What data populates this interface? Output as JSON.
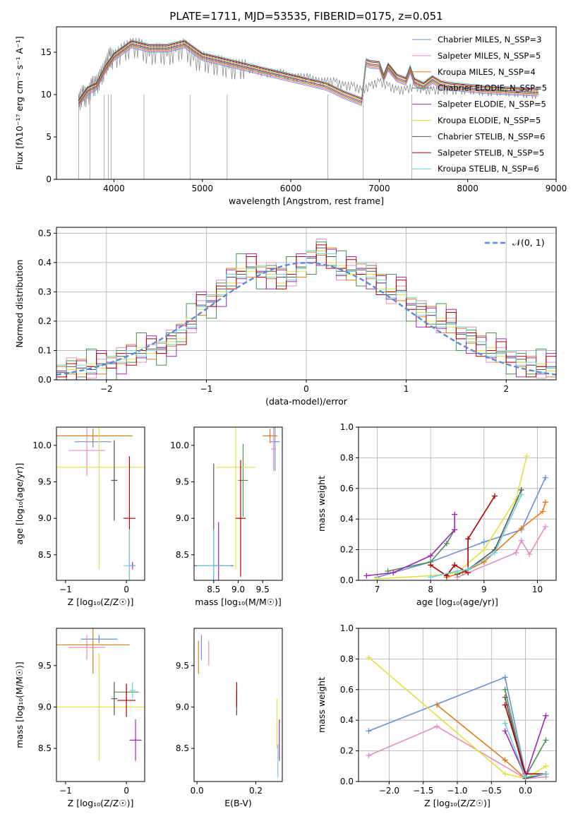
{
  "figure": {
    "title": "PLATE=1711, MJD=53535, FIBERID=0175, z=0.051",
    "model_colors": [
      "#6b8fd6",
      "#e48fc0",
      "#e07c20",
      "#4f8f56",
      "#9a2bb0",
      "#e0e040",
      "#555555",
      "#b00000",
      "#70d0d8"
    ]
  },
  "chart_data": [
    {
      "id": "spectrum",
      "type": "line",
      "xlabel": "wavelength [Angstrom, rest frame]",
      "ylabel": "Flux [fλ10⁻¹⁷ erg cm⁻² s⁻¹ A⁻¹]",
      "xlim": [
        3350,
        9000
      ],
      "ylim": [
        0,
        18
      ],
      "xticks": [
        4000,
        5000,
        6000,
        7000,
        8000,
        9000
      ],
      "yticks": [
        0,
        5,
        10,
        15
      ],
      "grid": false,
      "legend_position": "top-right",
      "legend": [
        "Chabrier MILES, N_SSP=3",
        "Salpeter MILES, N_SSP=5",
        "Kroupa MILES, N_SSP=4",
        "Chabrier ELODIE, N_SSP=5",
        "Salpeter ELODIE, N_SSP=5",
        "Kroupa ELODIE, N_SSP=5",
        "Chabrier STELIB, N_SSP=6",
        "Salpeter STELIB, N_SSP=5",
        "Kroupa STELIB, N_SSP=6"
      ],
      "data_color": "#808080",
      "data": {
        "x": [
          3600,
          3650,
          3700,
          3750,
          3800,
          3850,
          3900,
          3950,
          4000,
          4100,
          4200,
          4300,
          4400,
          4500,
          4600,
          4700,
          4800,
          4900,
          5000,
          5100,
          5200,
          5300,
          5400,
          5500,
          5600,
          5700,
          5800,
          5900,
          6000,
          6100,
          6200,
          6300,
          6400,
          6500,
          6600,
          6700,
          6800,
          6900,
          7000,
          7100,
          7200,
          7300,
          7400,
          7500,
          7600,
          7700,
          7800,
          7900,
          8000,
          8100,
          8200,
          8300,
          8400,
          8500,
          8600,
          8700,
          8800
        ],
        "y": [
          9,
          10,
          9.5,
          11,
          11,
          12,
          13,
          14.5,
          14,
          15,
          15.5,
          15.5,
          14.5,
          15,
          14.5,
          15,
          15.5,
          14,
          14,
          13.5,
          13.5,
          13,
          13,
          13,
          13,
          12.5,
          12.5,
          12.5,
          12,
          12,
          12,
          11.5,
          11.5,
          11.5,
          11,
          11,
          10.5,
          11,
          11.5,
          11,
          10.5,
          10.5,
          11,
          10.5,
          10.5,
          10.5,
          10.5,
          10.5,
          10.5,
          10.5,
          10.3,
          10.3,
          10.4,
          10.2,
          10.2,
          10.0,
          10.0
        ]
      },
      "model": {
        "x": [
          3600,
          3700,
          3800,
          3900,
          4000,
          4200,
          4400,
          4600,
          4800,
          5000,
          5200,
          5400,
          5600,
          5800,
          6000,
          6200,
          6400,
          6600,
          6800,
          6850,
          6900,
          7000,
          7050,
          7100,
          7200,
          7300,
          7350,
          7400,
          7500,
          7600,
          7700,
          7800,
          7900,
          8000,
          8200,
          8400,
          8600,
          8800
        ],
        "y": [
          9,
          10.5,
          11,
          13,
          14.5,
          16,
          15.5,
          15.5,
          16,
          14.5,
          14,
          13.5,
          13,
          12.5,
          12,
          11.5,
          11,
          10,
          9.2,
          13.8,
          13.6,
          13.5,
          12,
          13.3,
          12.0,
          11.6,
          13.0,
          11.5,
          11.0,
          11.8,
          11.2,
          11.0,
          10.9,
          10.8,
          10.6,
          10.5,
          10.4,
          10.3
        ]
      }
    },
    {
      "id": "residual_histogram",
      "type": "bar",
      "xlabel": "(data-model)/error",
      "ylabel": "Normed distribution",
      "xlim": [
        -2.5,
        2.5
      ],
      "ylim": [
        0,
        0.52
      ],
      "xticks": [
        -2,
        -1,
        0,
        1,
        2
      ],
      "yticks": [
        0.0,
        0.1,
        0.2,
        0.3,
        0.4,
        0.5
      ],
      "grid": true,
      "legend_position": "top-right",
      "legend": [
        "𝒩(0, 1)"
      ],
      "normal_color": "#5b8ad8",
      "bin_edges": [
        -2.5,
        -2.4,
        -2.3,
        -2.2,
        -2.1,
        -2.0,
        -1.9,
        -1.8,
        -1.7,
        -1.6,
        -1.5,
        -1.4,
        -1.3,
        -1.2,
        -1.1,
        -1.0,
        -0.9,
        -0.8,
        -0.7,
        -0.6,
        -0.5,
        -0.4,
        -0.3,
        -0.2,
        -0.1,
        0.0,
        0.1,
        0.2,
        0.3,
        0.4,
        0.5,
        0.6,
        0.7,
        0.8,
        0.9,
        1.0,
        1.1,
        1.2,
        1.3,
        1.4,
        1.5,
        1.6,
        1.7,
        1.8,
        1.9,
        2.0,
        2.1,
        2.2,
        2.3,
        2.4,
        2.5
      ],
      "counts": [
        0.03,
        0.035,
        0.04,
        0.045,
        0.05,
        0.06,
        0.07,
        0.09,
        0.1,
        0.1,
        0.11,
        0.13,
        0.16,
        0.2,
        0.25,
        0.27,
        0.3,
        0.35,
        0.37,
        0.38,
        0.37,
        0.36,
        0.35,
        0.36,
        0.38,
        0.42,
        0.44,
        0.42,
        0.38,
        0.37,
        0.38,
        0.36,
        0.33,
        0.3,
        0.3,
        0.26,
        0.23,
        0.22,
        0.2,
        0.19,
        0.16,
        0.14,
        0.12,
        0.1,
        0.09,
        0.08,
        0.06,
        0.05,
        0.045,
        0.04
      ]
    },
    {
      "id": "age_vs_Z",
      "type": "scatter",
      "xlabel": "Z [log₁₀(Z/Z☉)]",
      "ylabel": "age  [log₁₀(age/yr)]",
      "xlim": [
        -1.15,
        0.3
      ],
      "ylim": [
        8.15,
        10.25
      ],
      "xticks": [
        -1,
        0
      ],
      "yticks": [
        8.5,
        9.0,
        9.5,
        10.0
      ],
      "grid": false,
      "points": [
        {
          "model": 0,
          "x": -0.55,
          "y": 10.05,
          "xerr": 0.3,
          "yerr": 0.08
        },
        {
          "model": 1,
          "x": -0.65,
          "y": 9.93,
          "xerr": 0.3,
          "yerr": 0.35
        },
        {
          "model": 2,
          "x": -0.55,
          "y": 10.13,
          "xerr": 0.65,
          "yerr": 0.1
        },
        {
          "model": 3,
          "x": -0.2,
          "y": 9.52,
          "xerr": 0.05,
          "yerr": 0.55
        },
        {
          "model": 4,
          "x": 0.1,
          "y": 8.35,
          "xerr": 0.05,
          "yerr": 0.05
        },
        {
          "model": 5,
          "x": -0.45,
          "y": 9.7,
          "xerr": 0.8,
          "yerr": 1.4
        },
        {
          "model": 6,
          "x": -0.2,
          "y": 9.52,
          "xerr": 0.05,
          "yerr": 0.55
        },
        {
          "model": 7,
          "x": 0.05,
          "y": 9.0,
          "xerr": 0.1,
          "yerr": 0.85
        },
        {
          "model": 8,
          "x": 0.05,
          "y": 8.35,
          "xerr": 0.1,
          "yerr": 0.5
        }
      ]
    },
    {
      "id": "age_vs_mass",
      "type": "scatter",
      "xlabel": "mass [log₁₀(M/M☉)]",
      "ylabel": "",
      "xlim": [
        8.1,
        9.9
      ],
      "ylim": [
        8.15,
        10.25
      ],
      "xticks": [
        8.5,
        9.0,
        9.5
      ],
      "yticks": [
        8.5,
        9.0,
        9.5,
        10.0
      ],
      "grid": false,
      "points": [
        {
          "model": 0,
          "x": 9.75,
          "y": 10.05,
          "xerr": 0.1,
          "yerr": 0.4
        },
        {
          "model": 1,
          "x": 9.72,
          "y": 9.95,
          "xerr": 0.05,
          "yerr": 0.3
        },
        {
          "model": 2,
          "x": 9.65,
          "y": 10.13,
          "xerr": 0.15,
          "yerr": 0.1
        },
        {
          "model": 3,
          "x": 9.1,
          "y": 9.52,
          "xerr": 0.1,
          "yerr": 0.5
        },
        {
          "model": 4,
          "x": 8.6,
          "y": 8.35,
          "xerr": 0.1,
          "yerr": 0.6
        },
        {
          "model": 5,
          "x": 8.95,
          "y": 9.7,
          "xerr": 0.4,
          "yerr": 1.4
        },
        {
          "model": 6,
          "x": 8.5,
          "y": 8.35,
          "xerr": 0.4,
          "yerr": 1.4
        },
        {
          "model": 7,
          "x": 9.05,
          "y": 9.0,
          "xerr": 0.1,
          "yerr": 0.8
        },
        {
          "model": 8,
          "x": 8.5,
          "y": 8.35,
          "xerr": 0.35,
          "yerr": 0.5
        }
      ]
    },
    {
      "id": "weight_vs_age",
      "type": "line",
      "xlabel": "age  [log₁₀(age/yr)]",
      "ylabel": "mass weight",
      "xlim": [
        6.65,
        10.35
      ],
      "ylim": [
        0,
        1.0
      ],
      "xticks": [
        7,
        8,
        9,
        10
      ],
      "yticks": [
        0.0,
        0.2,
        0.4,
        0.6,
        0.8,
        1.0
      ],
      "grid": true,
      "series": [
        {
          "model": 0,
          "x": [
            7.0,
            8.0,
            9.0,
            9.7,
            10.15
          ],
          "y": [
            0.02,
            0.12,
            0.25,
            0.33,
            0.67
          ]
        },
        {
          "model": 1,
          "x": [
            8.5,
            9.6,
            9.7,
            9.85,
            10.15
          ],
          "y": [
            0.02,
            0.18,
            0.26,
            0.17,
            0.35
          ]
        },
        {
          "model": 2,
          "x": [
            8.3,
            8.6,
            9.0,
            9.7,
            10.1,
            10.15
          ],
          "y": [
            0.02,
            0.05,
            0.12,
            0.34,
            0.45,
            0.51
          ]
        },
        {
          "model": 3,
          "x": [
            7.2,
            8.0,
            8.3,
            8.45
          ],
          "y": [
            0.06,
            0.12,
            0.24,
            0.33
          ]
        },
        {
          "model": 4,
          "x": [
            6.8,
            7.3,
            8.0,
            8.45,
            8.45
          ],
          "y": [
            0.03,
            0.05,
            0.16,
            0.33,
            0.43
          ]
        },
        {
          "model": 5,
          "x": [
            7.0,
            8.0,
            8.5,
            9.0,
            9.6,
            9.8
          ],
          "y": [
            0.01,
            0.03,
            0.05,
            0.2,
            0.53,
            0.81
          ]
        },
        {
          "model": 6,
          "x": [
            8.5,
            8.7,
            9.2,
            9.7
          ],
          "y": [
            0.04,
            0.07,
            0.2,
            0.59
          ]
        },
        {
          "model": 7,
          "x": [
            8.0,
            8.3,
            8.45,
            8.7,
            8.7,
            9.2
          ],
          "y": [
            0.1,
            0.03,
            0.1,
            0.05,
            0.27,
            0.55
          ]
        },
        {
          "model": 8,
          "x": [
            8.0,
            8.5,
            8.7,
            9.2,
            9.7
          ],
          "y": [
            0.02,
            0.06,
            0.07,
            0.18,
            0.56
          ]
        }
      ]
    },
    {
      "id": "mass_vs_Z",
      "type": "scatter",
      "xlabel": "Z [log₁₀(Z/Z☉)]",
      "ylabel": "mass [log₁₀(M/M☉)]",
      "xlim": [
        -1.15,
        0.3
      ],
      "ylim": [
        8.1,
        9.95
      ],
      "xticks": [
        -1,
        0
      ],
      "yticks": [
        8.5,
        9.0,
        9.5
      ],
      "grid": false,
      "points": [
        {
          "model": 0,
          "x": -0.45,
          "y": 9.82,
          "xerr": 0.3,
          "yerr": 0.05
        },
        {
          "model": 1,
          "x": -0.65,
          "y": 9.72,
          "xerr": 0.3,
          "yerr": 0.15
        },
        {
          "model": 2,
          "x": -0.55,
          "y": 9.75,
          "xerr": 0.6,
          "yerr": 0.35
        },
        {
          "model": 3,
          "x": 0.0,
          "y": 9.18,
          "xerr": 0.2,
          "yerr": 0.1
        },
        {
          "model": 4,
          "x": 0.15,
          "y": 8.6,
          "xerr": 0.1,
          "yerr": 0.25
        },
        {
          "model": 5,
          "x": -0.45,
          "y": 9.0,
          "xerr": 0.8,
          "yerr": 0.65
        },
        {
          "model": 6,
          "x": -0.2,
          "y": 9.1,
          "xerr": 0.05,
          "yerr": 0.2
        },
        {
          "model": 7,
          "x": 0.0,
          "y": 9.08,
          "xerr": 0.15,
          "yerr": 0.2
        },
        {
          "model": 8,
          "x": 0.1,
          "y": 9.2,
          "xerr": 0.05,
          "yerr": 0.1
        }
      ]
    },
    {
      "id": "mass_vs_ebv",
      "type": "scatter",
      "xlabel": "E(B-V)",
      "ylabel": "",
      "xlim": [
        -0.01,
        0.29
      ],
      "ylim": [
        8.1,
        9.95
      ],
      "xticks": [
        0.0,
        0.2
      ],
      "yticks": [
        8.5,
        9.0,
        9.5
      ],
      "grid": false,
      "points": [
        {
          "model": 0,
          "x": 0.015,
          "y": 9.72,
          "xerr": 0.0,
          "yerr": 0.15
        },
        {
          "model": 1,
          "x": 0.04,
          "y": 9.65,
          "xerr": 0.0,
          "yerr": 0.15
        },
        {
          "model": 2,
          "x": 0.005,
          "y": 9.6,
          "xerr": 0.0,
          "yerr": 0.2
        },
        {
          "model": 3,
          "x": 0.135,
          "y": 9.05,
          "xerr": 0.0,
          "yerr": 0.15
        },
        {
          "model": 4,
          "x": 0.28,
          "y": 8.6,
          "xerr": 0.0,
          "yerr": 0.25
        },
        {
          "model": 5,
          "x": 0.272,
          "y": 8.8,
          "xerr": 0.0,
          "yerr": 0.3
        },
        {
          "model": 6,
          "x": 0.135,
          "y": 9.05,
          "xerr": 0.0,
          "yerr": 0.15
        },
        {
          "model": 7,
          "x": 0.135,
          "y": 9.15,
          "xerr": 0.0,
          "yerr": 0.15
        },
        {
          "model": 8,
          "x": 0.275,
          "y": 8.35,
          "xerr": 0.0,
          "yerr": 0.2
        }
      ]
    },
    {
      "id": "weight_vs_Z",
      "type": "line",
      "xlabel": "Z [log₁₀(Z/Z☉)]",
      "ylabel": "mass weight",
      "xlim": [
        -2.45,
        0.45
      ],
      "ylim": [
        0,
        1.0
      ],
      "xticks": [
        -2.0,
        -1.5,
        -1.0,
        -0.5,
        0.0
      ],
      "yticks": [
        0.0,
        0.2,
        0.4,
        0.6,
        0.8,
        1.0
      ],
      "grid": true,
      "series": [
        {
          "model": 0,
          "x": [
            -2.3,
            -0.3,
            0.0
          ],
          "y": [
            0.33,
            0.68,
            0.05
          ]
        },
        {
          "model": 1,
          "x": [
            -2.3,
            -1.3,
            0.0,
            0.3
          ],
          "y": [
            0.17,
            0.36,
            0.02,
            0.03
          ]
        },
        {
          "model": 2,
          "x": [
            -1.3,
            -0.3,
            0.0,
            0.3
          ],
          "y": [
            0.5,
            0.14,
            0.02,
            0.05
          ]
        },
        {
          "model": 3,
          "x": [
            -0.3,
            0.0,
            0.3
          ],
          "y": [
            0.6,
            0.03,
            0.27
          ]
        },
        {
          "model": 4,
          "x": [
            -0.3,
            0.0,
            0.3
          ],
          "y": [
            0.33,
            0.03,
            0.43
          ]
        },
        {
          "model": 5,
          "x": [
            -2.3,
            -0.3,
            0.0,
            0.3
          ],
          "y": [
            0.81,
            0.05,
            0.02,
            0.1
          ]
        },
        {
          "model": 6,
          "x": [
            -0.3,
            0.0,
            0.3
          ],
          "y": [
            0.55,
            0.02,
            0.05
          ]
        },
        {
          "model": 7,
          "x": [
            -0.3,
            0.0,
            0.3
          ],
          "y": [
            0.5,
            0.05,
            0.05
          ]
        },
        {
          "model": 8,
          "x": [
            -0.3,
            0.0,
            0.3
          ],
          "y": [
            0.38,
            0.03,
            0.05
          ]
        }
      ]
    }
  ]
}
